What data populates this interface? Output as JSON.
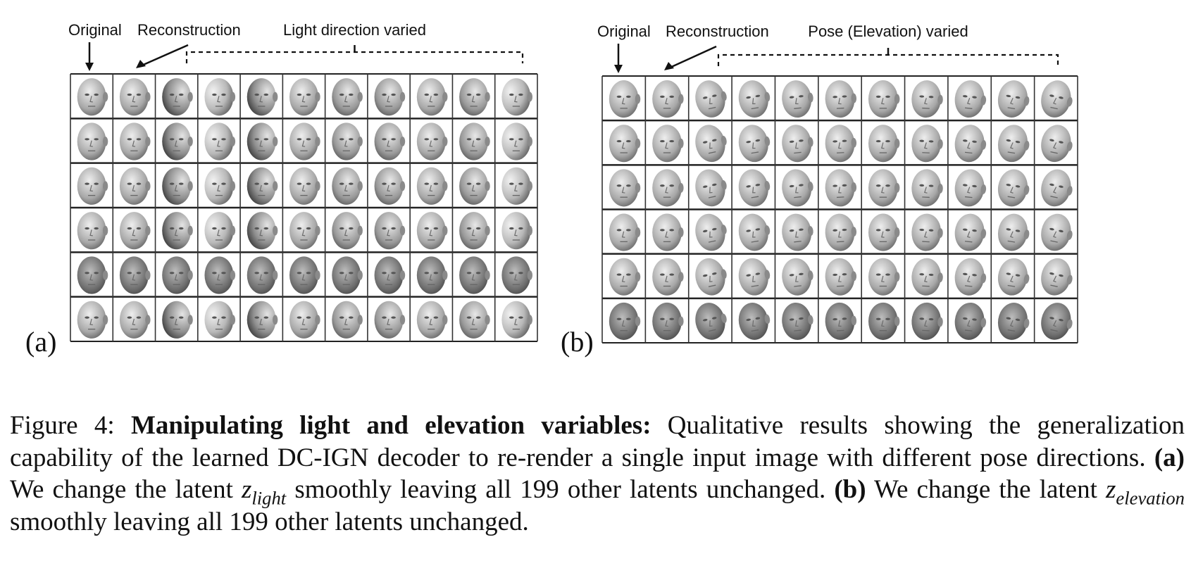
{
  "panels": [
    {
      "id": "a",
      "letter": "(a)",
      "header": {
        "original": "Original",
        "reconstruction": "Reconstruction",
        "varied": "Light direction varied"
      },
      "rows": 6,
      "cols": 11,
      "varied_type": "light"
    },
    {
      "id": "b",
      "letter": "(b)",
      "header": {
        "original": "Original",
        "reconstruction": "Reconstruction",
        "varied": "Pose (Elevation) varied"
      },
      "rows": 6,
      "cols": 11,
      "varied_type": "pose"
    }
  ],
  "caption": {
    "figure_label": "Figure 4:",
    "title": "Manipulating light and elevation variables:",
    "intro": " Qualitative results showing the generalization capability of the learned DC-IGN decoder to re-render a single input image with different pose directions. ",
    "a_label": "(a)",
    "a_pre": " We change the latent ",
    "a_var": "z",
    "a_sub": "light",
    "a_post": " smoothly leaving all 199 other latents unchanged. ",
    "b_label": "(b)",
    "b_pre": " We change the latent ",
    "b_var": "z",
    "b_sub": "elevation",
    "b_post": " smoothly leaving all 199 other latents unchanged."
  }
}
